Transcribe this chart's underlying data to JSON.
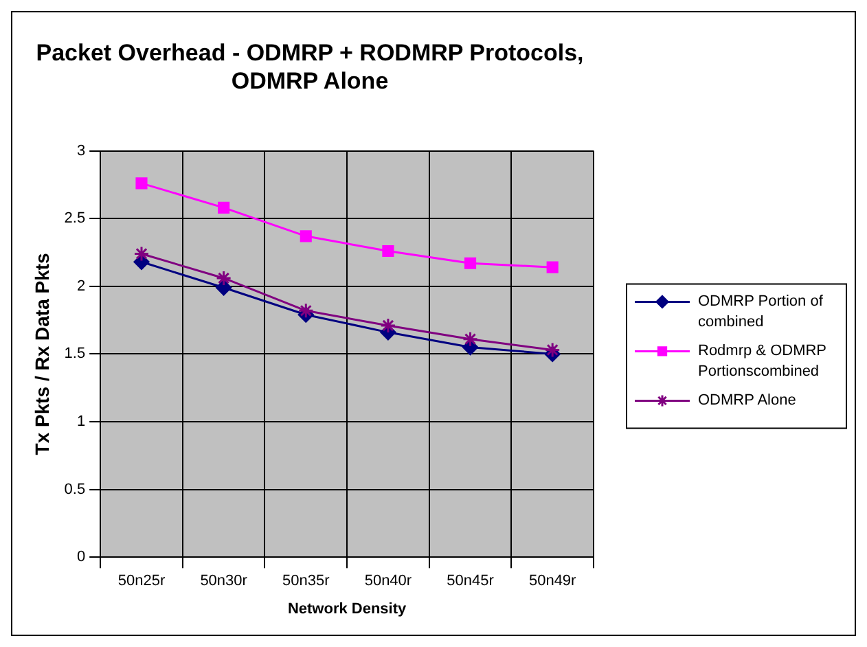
{
  "chart_data": {
    "type": "line",
    "title": "Packet Overhead - ODMRP + RODMRP Protocols, ODMRP Alone",
    "xlabel": "Network Density",
    "ylabel": "Tx Pkts / Rx Data Pkts",
    "categories": [
      "50n25r",
      "50n30r",
      "50n35r",
      "50n40r",
      "50n45r",
      "50n49r"
    ],
    "ylim": [
      0,
      3
    ],
    "yticks": [
      0,
      0.5,
      1,
      1.5,
      2,
      2.5,
      3
    ],
    "grid": true,
    "legend": "right",
    "series": [
      {
        "name": "ODMRP Portion of combined",
        "color": "#000080",
        "marker": "diamond",
        "values": [
          2.18,
          1.99,
          1.79,
          1.66,
          1.55,
          1.5
        ]
      },
      {
        "name": "Rodmrp & ODMRP Portionscombined",
        "color": "#ff00ff",
        "marker": "square",
        "values": [
          2.76,
          2.58,
          2.37,
          2.26,
          2.17,
          2.14
        ]
      },
      {
        "name": "ODMRP Alone",
        "color": "#800080",
        "marker": "cross",
        "values": [
          2.24,
          2.06,
          1.82,
          1.71,
          1.61,
          1.53
        ]
      }
    ]
  }
}
